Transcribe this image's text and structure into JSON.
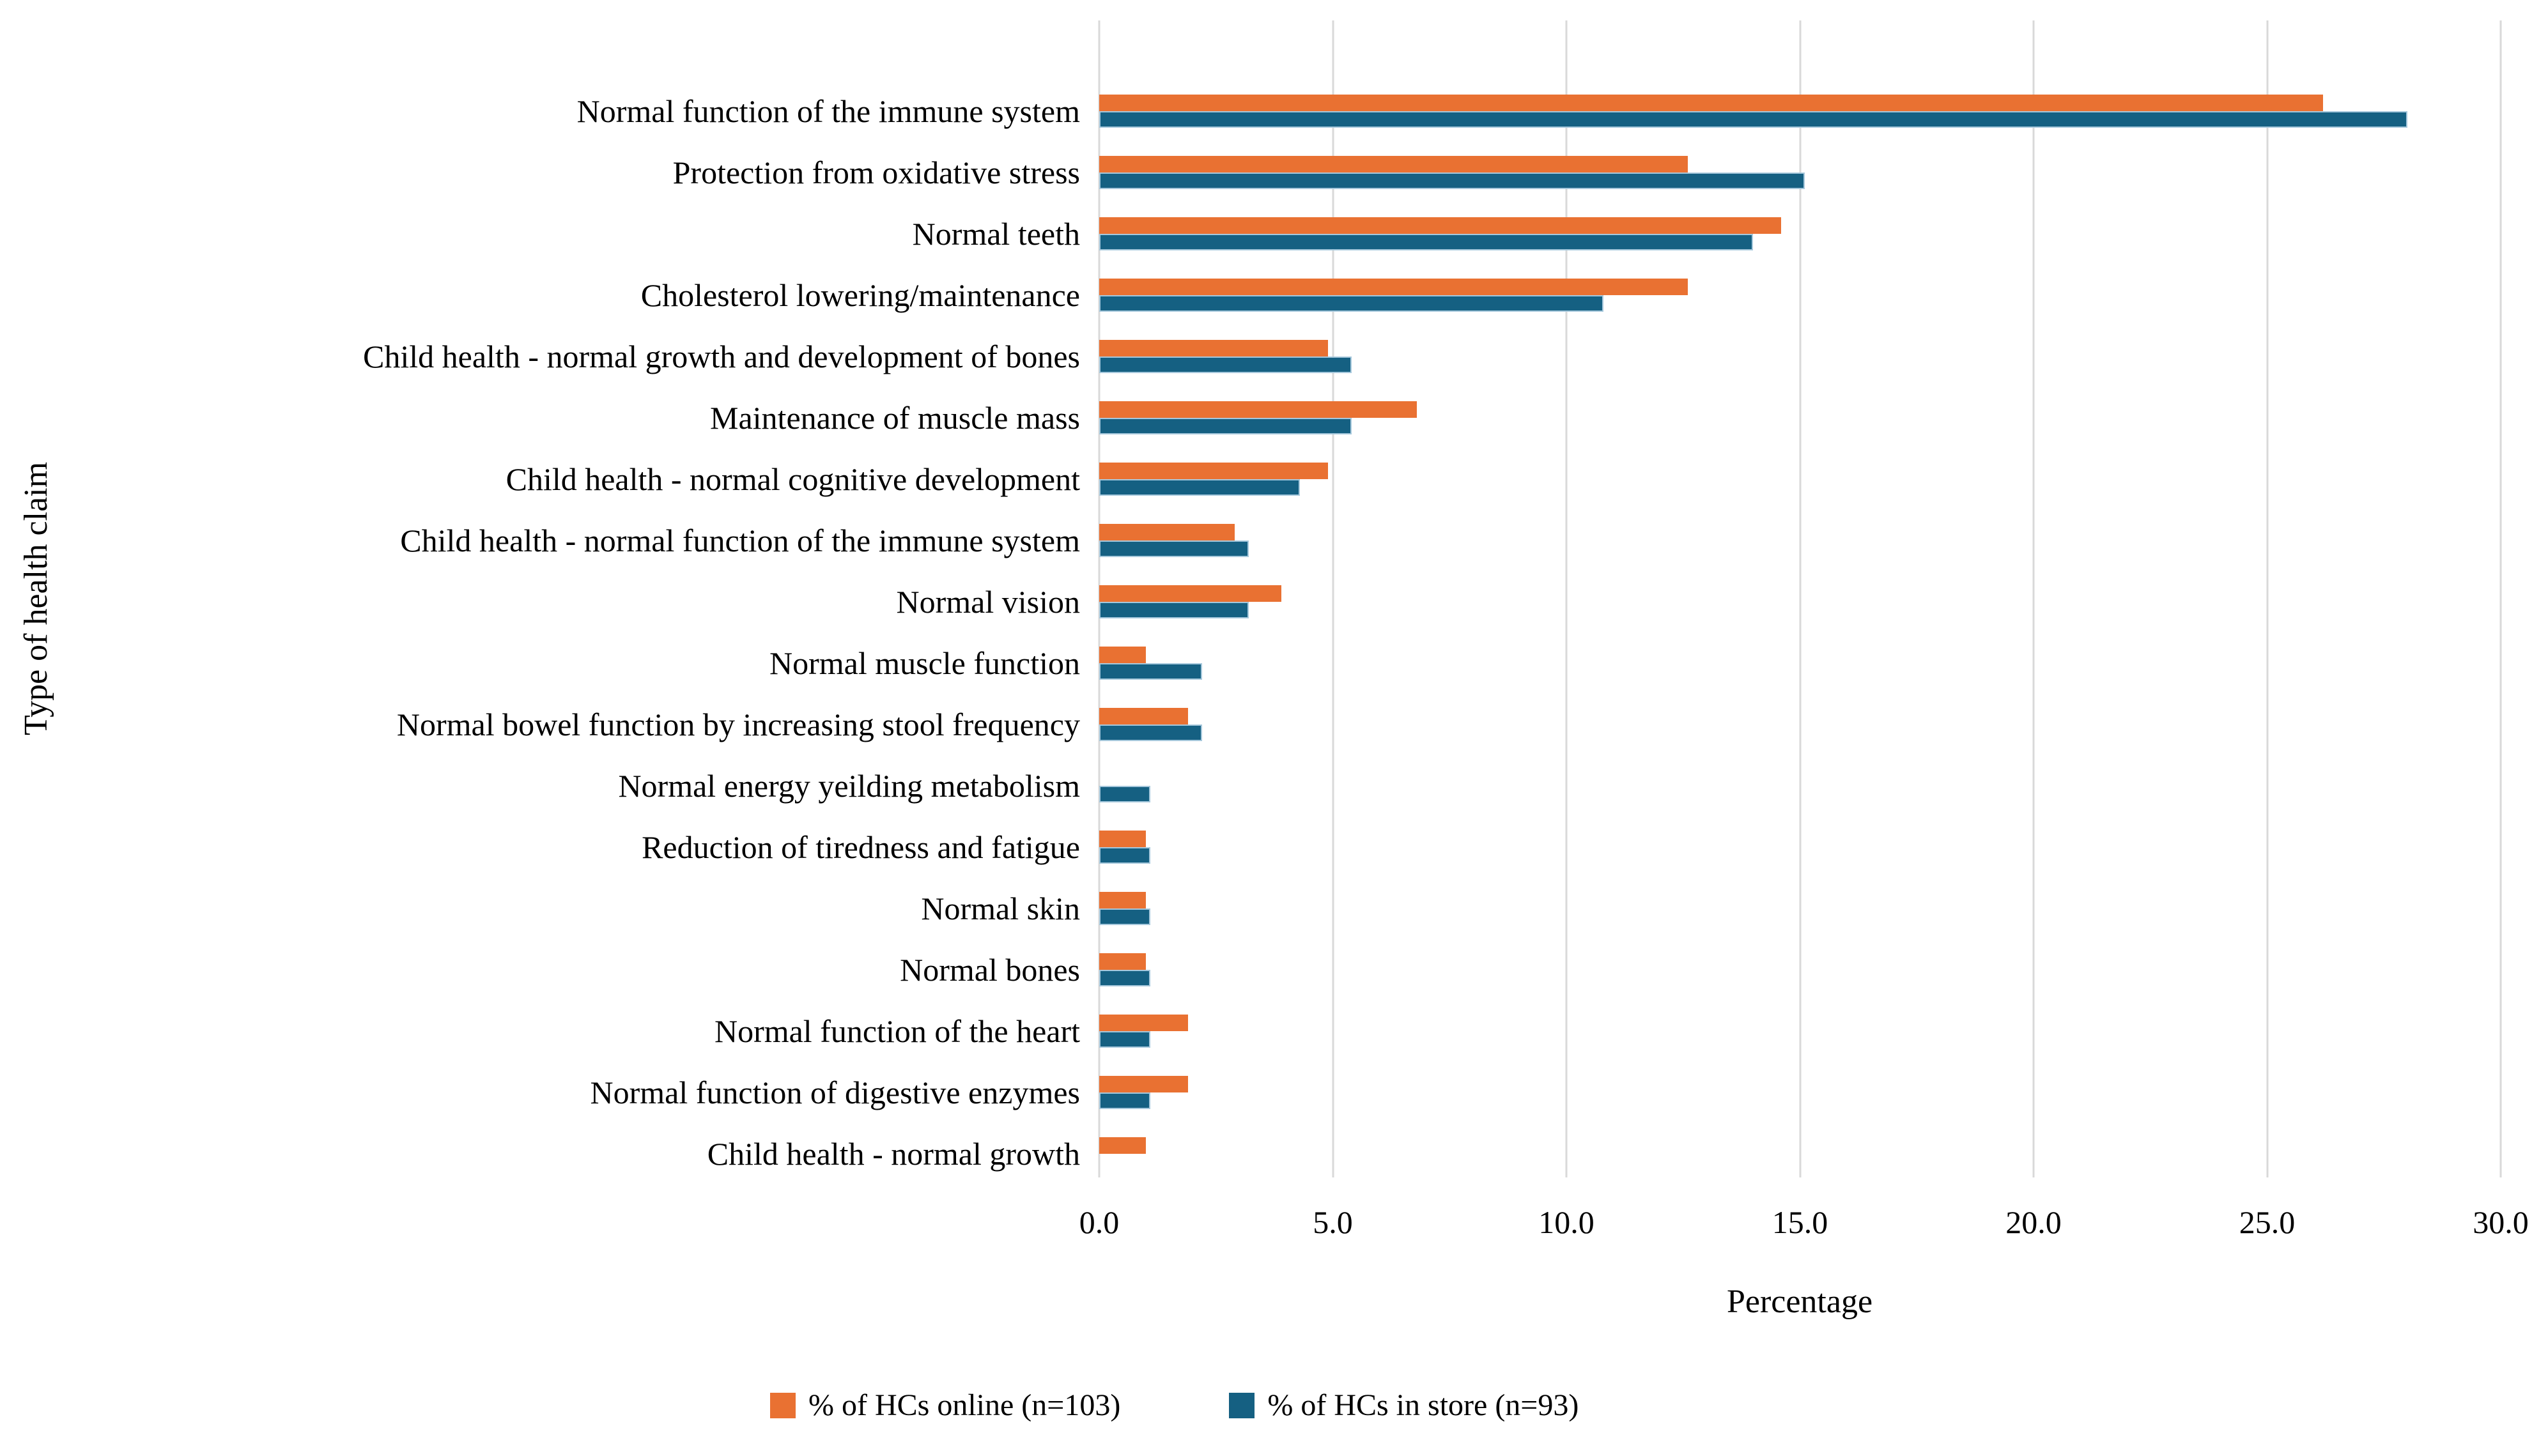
{
  "figure": {
    "x_axis_title": "Percentage",
    "y_axis_title": "Type of health claim"
  },
  "legend": [
    {
      "label": "% of HCs online (n=103)",
      "color": "#E97132"
    },
    {
      "label": "% of HCs in store (n=93)",
      "color": "#156082"
    }
  ],
  "chart_data": {
    "type": "bar",
    "orientation": "horizontal",
    "title": "",
    "xlabel": "Percentage",
    "ylabel": "Type of health claim",
    "xlim": [
      0,
      30
    ],
    "x_ticks": [
      "0.0",
      "5.0",
      "10.0",
      "15.0",
      "20.0",
      "25.0",
      "30.0"
    ],
    "grid": true,
    "legend_position": "bottom",
    "gridline_color": "#d9d9d9",
    "categories": [
      "Normal function of the immune system",
      "Protection from oxidative stress",
      "Normal teeth",
      "Cholesterol lowering/maintenance",
      "Child health - normal growth and development of bones",
      "Maintenance of muscle mass",
      "Child health - normal cognitive development",
      "Child health - normal function of the immune system",
      "Normal vision",
      "Normal muscle function",
      "Normal bowel function by increasing stool frequency",
      "Normal energy yeilding metabolism",
      "Reduction of tiredness and fatigue",
      "Normal skin",
      "Normal bones",
      "Normal function of the heart",
      "Normal function of digestive enzymes",
      "Child health - normal growth"
    ],
    "series": [
      {
        "name": "% of HCs online (n=103)",
        "color": "#E97132",
        "values": [
          26.2,
          12.6,
          14.6,
          12.6,
          4.9,
          6.8,
          4.9,
          2.9,
          3.9,
          1.0,
          1.9,
          0.0,
          1.0,
          1.0,
          1.0,
          1.9,
          1.9,
          1.0
        ]
      },
      {
        "name": "% of HCs in store (n=93)",
        "color": "#156082",
        "values": [
          28.0,
          15.1,
          14.0,
          10.8,
          5.4,
          5.4,
          4.3,
          3.2,
          3.2,
          2.2,
          2.2,
          1.1,
          1.1,
          1.1,
          1.1,
          1.1,
          1.1,
          0.0
        ]
      }
    ]
  }
}
